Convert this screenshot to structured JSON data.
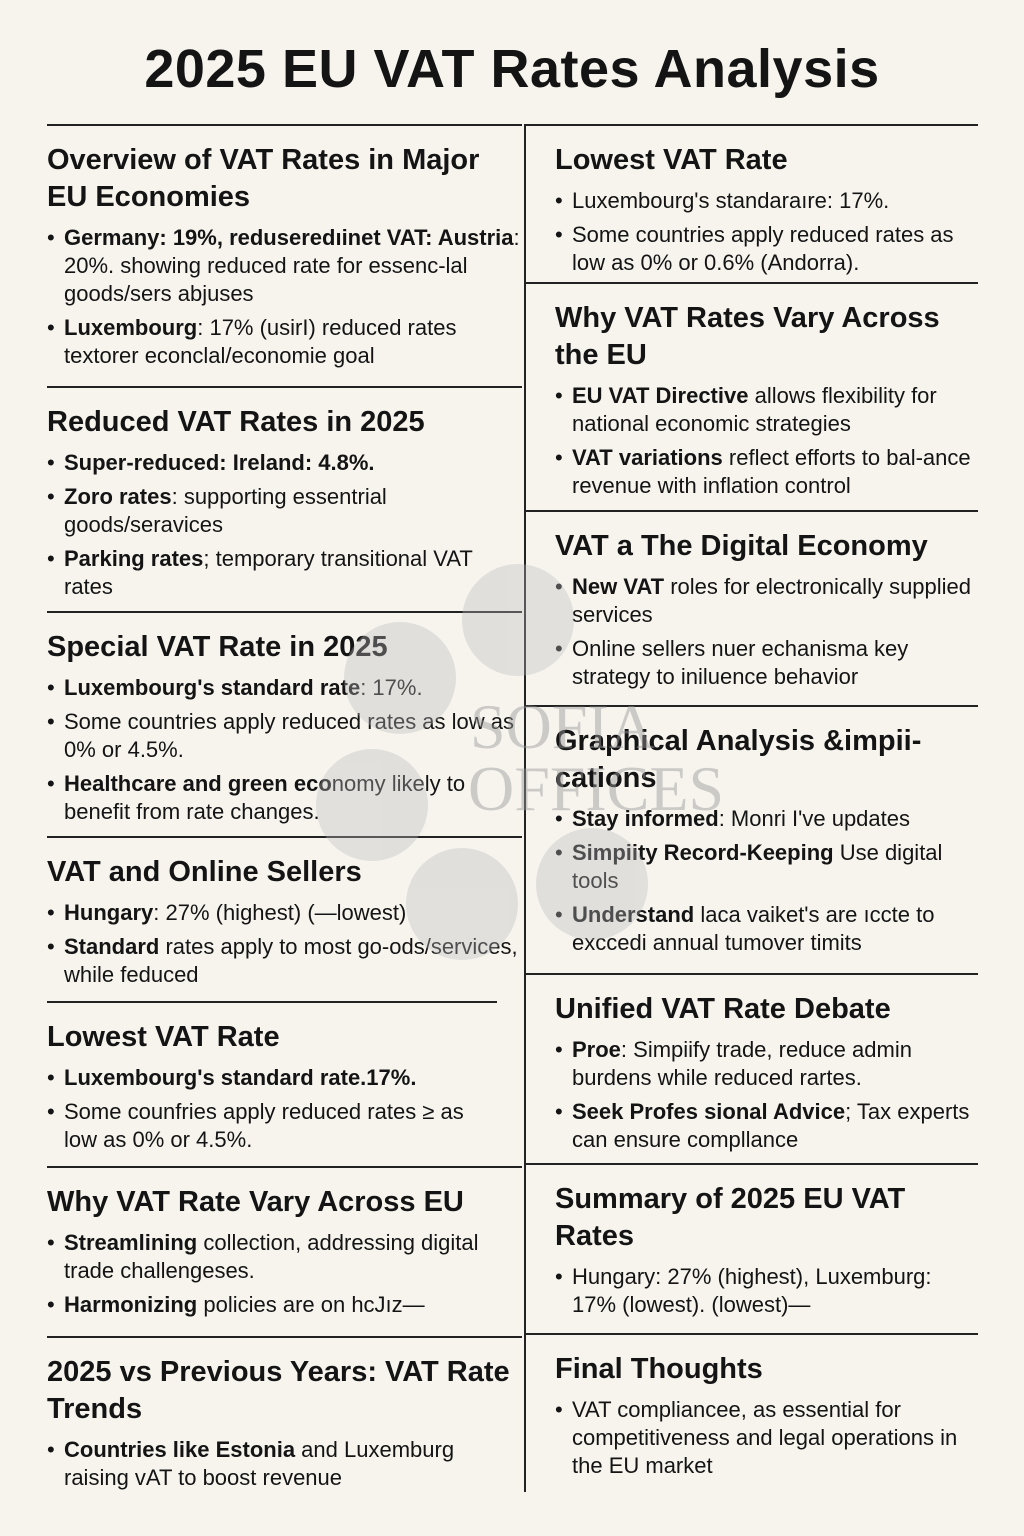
{
  "header": {
    "title": "2025 EU VAT Rates Analysis"
  },
  "watermark": [
    "SOFIA",
    "OFFICES"
  ],
  "left": [
    {
      "heading": "Overview of VAT Rates in Major EU Economies",
      "bullets": [
        {
          "bold": "Germany: 19%, reduseredıinet VAT: Austria",
          "rest": ": 20%. showing reduced rate for essenc-lal goods/sers abjuses"
        },
        {
          "bold": "Luxembourg",
          "rest": ": 17% (usirI) reduced rates textorer econclal/economie goal"
        }
      ]
    },
    {
      "heading": "Reduced VAT Rates in 2025",
      "bullets": [
        {
          "bold": "Super-reduced: Ireland: 4.8%."
        },
        {
          "bold": "Zoro rates",
          "rest": ": supporting essentrial goods/seravices"
        },
        {
          "bold": "Parking rates",
          "rest": "; temporary transitional VAT rates"
        }
      ]
    },
    {
      "heading": "Special VAT Rate in 2025",
      "bullets": [
        {
          "bold": "Luxembourg's standard rate",
          "rest": ": 17%."
        },
        {
          "rest": "Some countries apply reduced rates as low as 0% or 4.5%."
        },
        {
          "bold": "Healthcare and green eco",
          "rest": "nomy likely to benefit from rate changes."
        }
      ]
    },
    {
      "heading": "VAT and Online Sellers",
      "bullets": [
        {
          "bold": "Hungary",
          "rest": ": 27% (highest) (—lowest)"
        },
        {
          "bold": "Standard",
          "rest": " rates apply to most go-ods/services, while feduced"
        }
      ]
    },
    {
      "heading": "Lowest VAT Rate",
      "bullets": [
        {
          "bold": "Luxembourg's standard rate.17%."
        },
        {
          "rest": "Some counfries apply reduced rates ≥ as low as 0% or 4.5%."
        }
      ]
    },
    {
      "heading": "Why VAT Rate Vary Across EU",
      "bullets": [
        {
          "bold": "Streamlining",
          "rest": " collection, addressing digital trade challengeses."
        },
        {
          "bold": "Harmonizing",
          "rest": " policies are on hcJız—"
        }
      ]
    },
    {
      "heading": "2025 vs Previous Years: VAT Rate Trends",
      "bullets": [
        {
          "bold": "Countries like Estonia",
          "rest": " and Luxemburg raising vAT to boost revenue"
        }
      ]
    }
  ],
  "right": [
    {
      "heading": "Lowest VAT Rate",
      "bullets": [
        {
          "rest": "Luxembourg's standaraıre: 17%."
        },
        {
          "rest": "Some countries apply reduced rates as low as 0% or 0.6% (Andorra)."
        }
      ]
    },
    {
      "heading": "Why VAT Rates Vary Across the EU",
      "bullets": [
        {
          "bold": "EU VAT Directive",
          "rest": " allows flexibility for national economic strategies"
        },
        {
          "bold": "VAT variations",
          "rest": " reflect efforts to bal-ance revenue with inflation control"
        }
      ]
    },
    {
      "heading": "VAT a The Digital Economy",
      "bullets": [
        {
          "bold": "New VAT",
          "rest": " roles for electronically supplied services"
        },
        {
          "rest": "Online sellers nuer echanisma key strategy to iniluence behavior"
        }
      ]
    },
    {
      "heading": "Graphical Analysis &impii-cations",
      "bullets": [
        {
          "bold": "Stay informed",
          "rest": ":  Monri I've updates"
        },
        {
          "bold": "Simpiity Record-Keeping",
          "rest": " Use digital tools"
        },
        {
          "bold": "Understand",
          "rest": " laca vaiket's are ıccte to exccedi annual tumover timits"
        }
      ]
    },
    {
      "heading": "Unified VAT Rate Debate",
      "bullets": [
        {
          "bold": "Proe",
          "rest": ": Simpiify trade, reduce admin burdens while reduced rartes."
        },
        {
          "bold": "Seek Profes sional Advice",
          "rest": "; Tax experts can ensure compllance"
        }
      ]
    },
    {
      "heading": "Summary of 2025 EU VAT Rates",
      "bullets": [
        {
          "rest": "Hungary: 27% (highest), Luxemburg: 17% (lowest). (lowest)—"
        }
      ]
    },
    {
      "heading": "Final Thoughts",
      "bullets": [
        {
          "rest": "VAT compliancee, as essential for competitiveness and legal operations in the EU market"
        }
      ]
    }
  ]
}
